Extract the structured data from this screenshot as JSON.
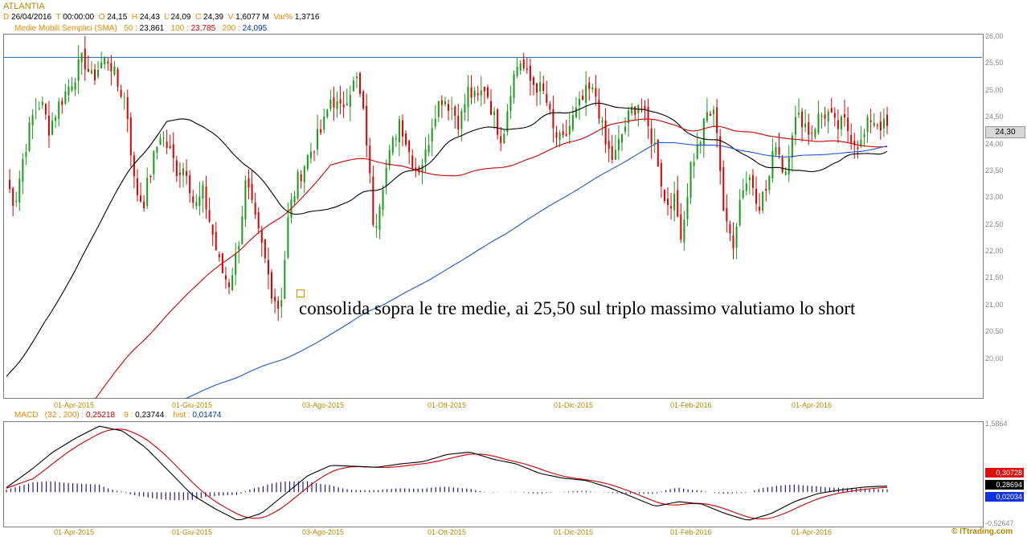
{
  "header": {
    "title": "ATLANTIA",
    "d_label": "D",
    "d_value": "26/04/2016",
    "t_label": "T",
    "t_value": "00:00:00",
    "o_label": "O",
    "o_value": "24,15",
    "h_label": "H",
    "h_value": "24,43",
    "l_label": "L",
    "l_value": "24,09",
    "c_label": "C",
    "c_value": "24,39",
    "v_label": "V",
    "v_value": "1,6077 M",
    "var_label": "Var%",
    "var_value": "1,3716"
  },
  "sma": {
    "label": "Medie Mobili Semplici (SMA)",
    "p50_label": "50 :",
    "p50_value": "23,861",
    "p100_label": "100 :",
    "p100_value": "23,785",
    "p200_label": "200 :",
    "p200_value": "24,095"
  },
  "macd": {
    "label": "MACD",
    "params": "(32 , 200) :",
    "macd_value": "0,25218",
    "signal_label": "9 :",
    "signal_value": "0,23744",
    "hist_label": "hist :",
    "hist_value": "0,01474",
    "badges": [
      "0,30728",
      "0,28694",
      "0,02034"
    ]
  },
  "annotation": "consolida sopra le tre medie, ai 25,50 sul triplo massimo valutiamo lo short",
  "watermark": "© ITtrading.com",
  "price_badge": "24,30",
  "colors": {
    "bull": "#1a9a1a",
    "bear": "#dd0000",
    "sma50": "#000000",
    "sma100": "#cc0000",
    "sma200": "#2255cc",
    "resistance": "#2266aa",
    "macd_line": "#000000",
    "macd_signal": "#cc0000",
    "macd_hist": "#1a1a8c"
  },
  "chart_data": [
    {
      "type": "candlestick",
      "title": "ATLANTIA",
      "y_ticks": [
        "26,00",
        "25,50",
        "25,00",
        "24,50",
        "24,00",
        "23,50",
        "23,00",
        "22,50",
        "22,00",
        "21,50",
        "21,00",
        "20,50",
        "20,00"
      ],
      "x_ticks": [
        "01-Apr-2015",
        "01-Giu-2015",
        "03-Ago-2015",
        "01-Ott-2015",
        "01-Dic-2015",
        "01-Feb-2016",
        "01-Apr-2016"
      ],
      "ylim": [
        19.5,
        26.0
      ],
      "resistance": 25.62,
      "last_price": 24.3,
      "price_path": [
        23.3,
        22.9,
        23.8,
        24.5,
        24.8,
        24.3,
        24.7,
        25.0,
        25.3,
        25.6,
        25.2,
        25.5,
        25.6,
        25.1,
        24.8,
        23.2,
        22.9,
        23.6,
        24.2,
        23.9,
        23.5,
        23.6,
        22.8,
        23.1,
        22.4,
        21.7,
        21.4,
        22.0,
        23.3,
        22.6,
        22.0,
        21.3,
        20.9,
        22.7,
        23.3,
        23.7,
        24.0,
        24.3,
        24.9,
        24.6,
        25.0,
        25.2,
        24.3,
        22.4,
        23.3,
        23.9,
        24.5,
        23.9,
        23.5,
        23.8,
        24.6,
        24.9,
        24.7,
        24.4,
        25.0,
        24.8,
        25.1,
        24.5,
        24.1,
        25.1,
        25.6,
        25.2,
        25.1,
        24.9,
        24.2,
        24.0,
        24.4,
        24.7,
        25.0,
        24.9,
        24.0,
        23.7,
        24.2,
        24.6,
        24.8,
        24.3,
        23.9,
        22.9,
        23.0,
        22.3,
        23.6,
        24.0,
        24.6,
        24.5,
        22.5,
        22.2,
        23.2,
        23.4,
        22.9,
        23.2,
        24.1,
        23.4,
        24.4,
        24.5,
        24.2,
        24.5,
        24.6,
        24.3,
        24.4,
        24.1,
        24.0,
        24.5,
        24.4,
        24.3
      ],
      "sma50": {
        "name": "50",
        "last": 23.861
      },
      "sma100": {
        "name": "100",
        "last": 23.785
      },
      "sma200": {
        "name": "200",
        "last": 24.095
      }
    },
    {
      "type": "line",
      "title": "MACD",
      "y_ticks": [
        "1,5864",
        "-0,52647"
      ],
      "ylim": [
        -0.52647,
        1.5864
      ],
      "x_ticks": [
        "01-Apr-2015",
        "01-Giu-2015",
        "03-Ago-2015",
        "01-Ott-2015",
        "01-Dic-2015",
        "01-Feb-2016",
        "01-Apr-2016"
      ],
      "series": [
        {
          "name": "MACD",
          "last": 0.25218
        },
        {
          "name": "9",
          "last": 0.23744
        },
        {
          "name": "hist",
          "last": 0.01474
        }
      ]
    }
  ]
}
